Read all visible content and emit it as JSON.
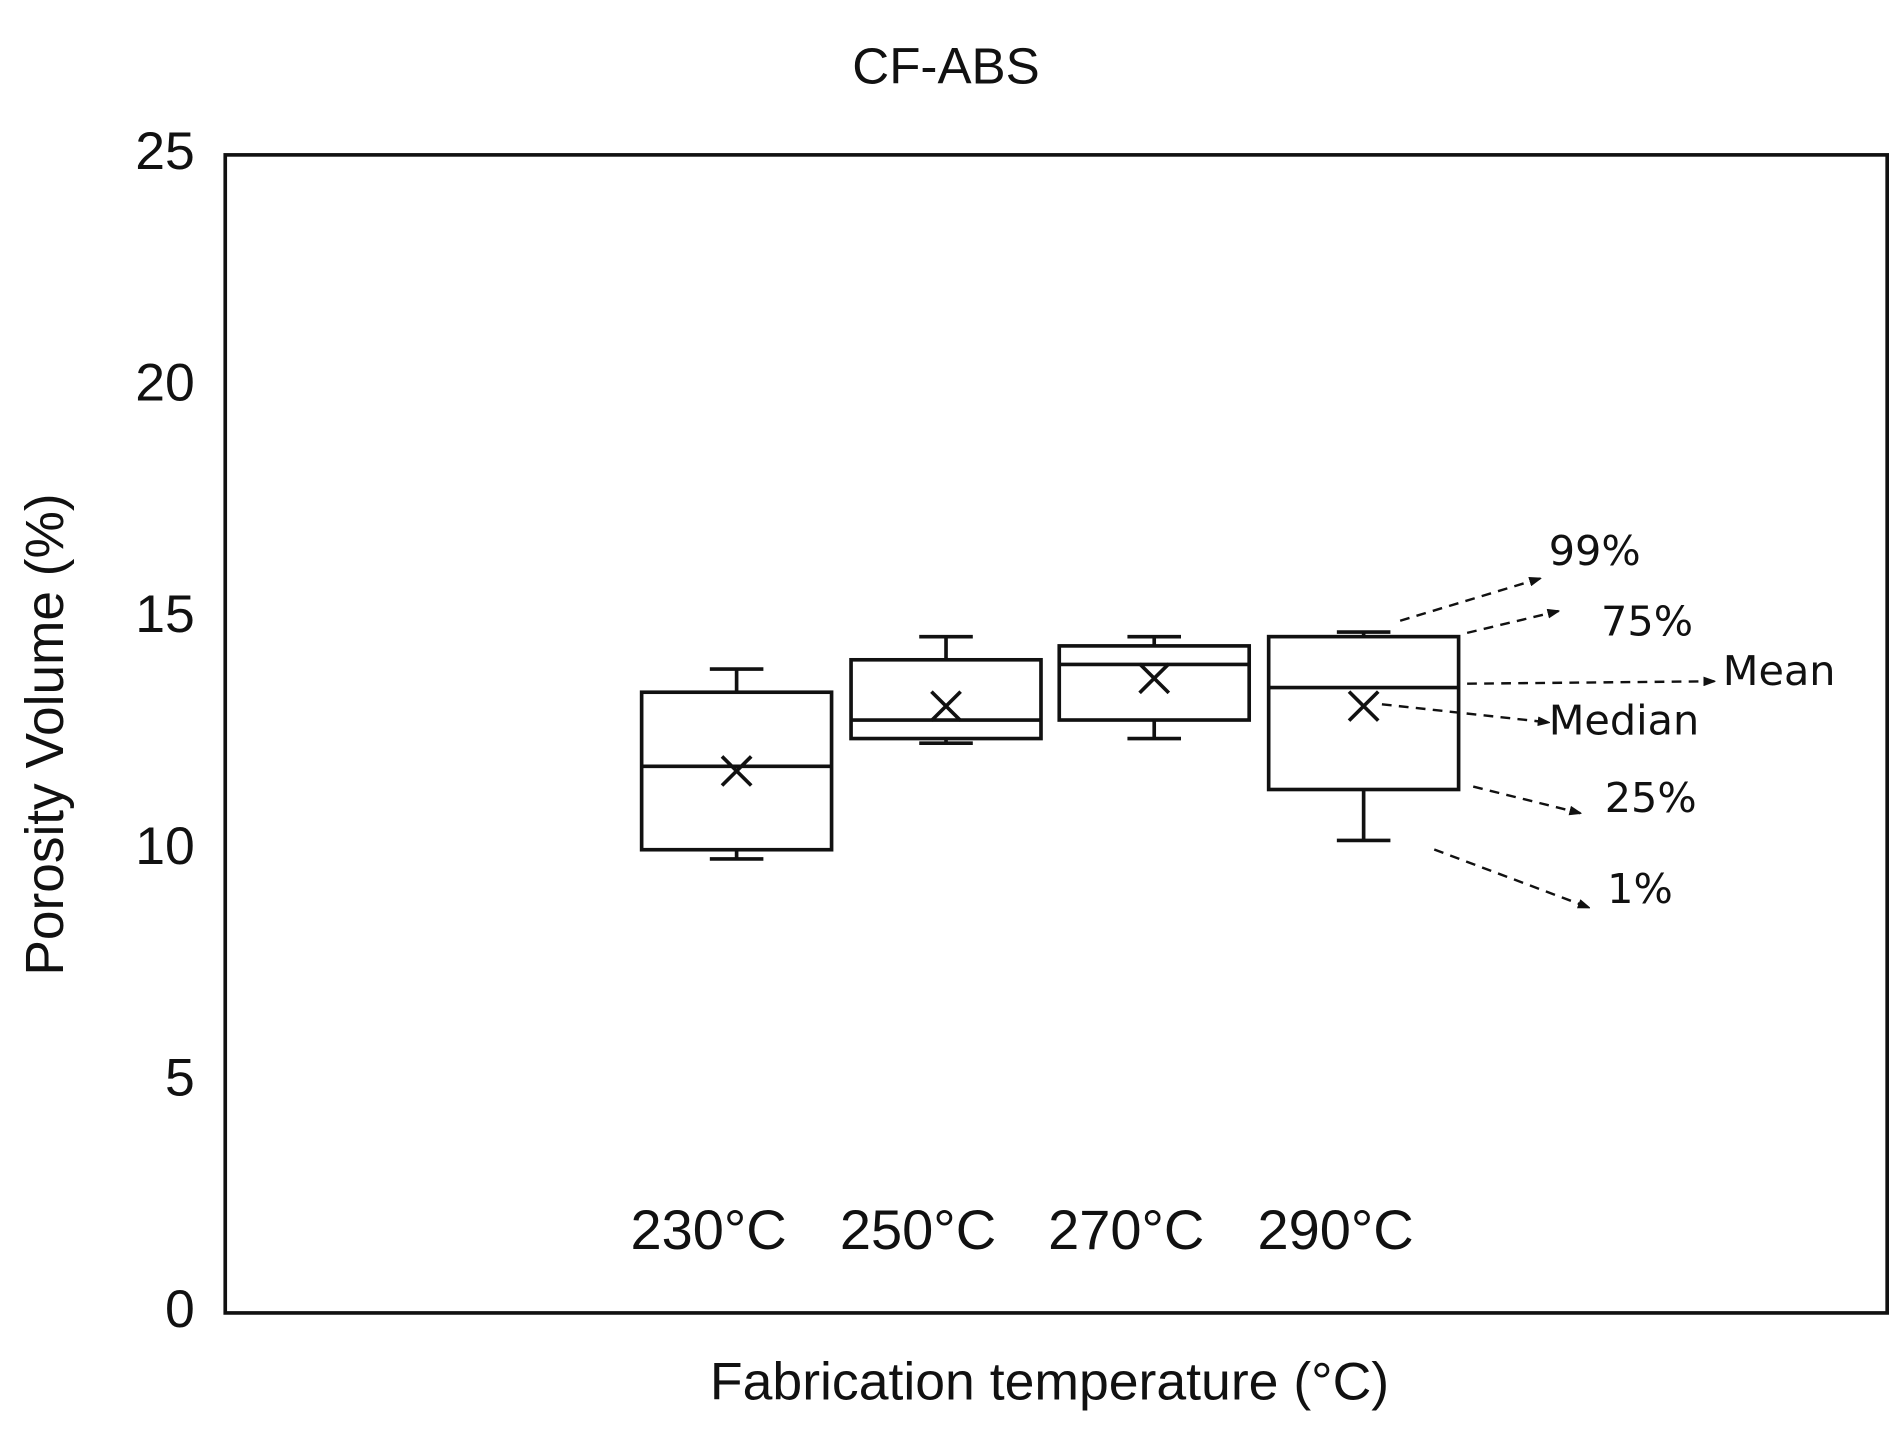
{
  "chart_data": {
    "type": "box",
    "title": "CF-ABS",
    "x_label": "Fabrication temperature (°C)",
    "y_label": "Porosity Volume (%)",
    "categories": [
      "230°C",
      "250°C",
      "270°C",
      "290°C"
    ],
    "whisker_high": [
      13.9,
      14.6,
      14.6,
      14.7
    ],
    "q3": [
      13.4,
      14.1,
      14.4,
      14.6
    ],
    "median": [
      11.8,
      12.8,
      14.0,
      13.5
    ],
    "q1": [
      10.0,
      12.4,
      12.8,
      11.3
    ],
    "whisker_low": [
      9.8,
      12.3,
      12.4,
      10.2
    ],
    "mean": [
      11.7,
      13.1,
      13.7,
      13.1
    ],
    "ylim": [
      0,
      25
    ],
    "yticks": [
      0,
      5,
      10,
      15,
      20,
      25
    ],
    "annotations": [
      "99%",
      "75%",
      "Mean",
      "Median",
      "25%",
      "1%"
    ],
    "color": "#111111"
  }
}
